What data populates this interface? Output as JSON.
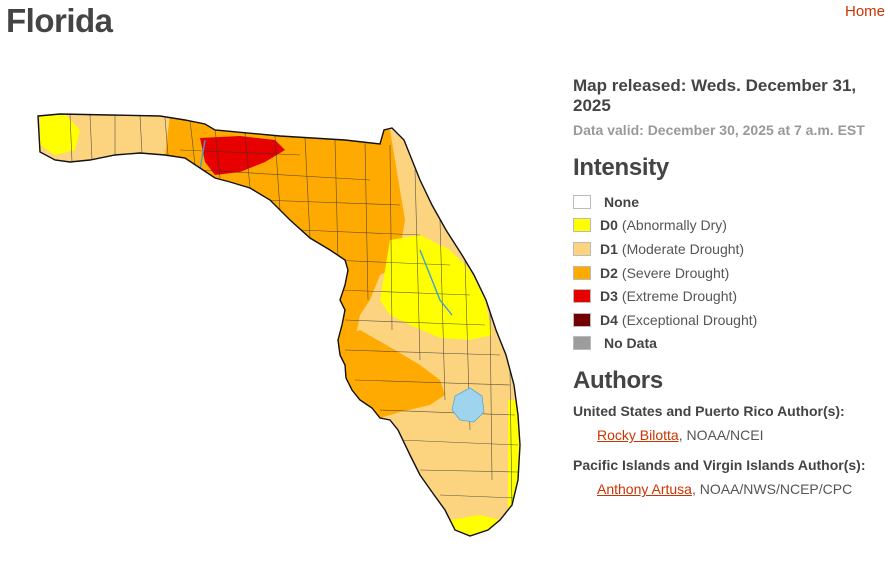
{
  "header": {
    "title": "Florida",
    "home_label": "Home"
  },
  "map": {
    "released": "Map released: Weds. December 31, 2025",
    "valid": "Data valid: December 30, 2025 at 7 a.m. EST"
  },
  "intensity": {
    "heading": "Intensity",
    "items": [
      {
        "code": "",
        "label": "None",
        "color": "#ffffff"
      },
      {
        "code": "D0",
        "label": "(Abnormally Dry)",
        "color": "#ffff00"
      },
      {
        "code": "D1",
        "label": "(Moderate Drought)",
        "color": "#fcd37f"
      },
      {
        "code": "D2",
        "label": "(Severe Drought)",
        "color": "#ffaa00"
      },
      {
        "code": "D3",
        "label": "(Extreme Drought)",
        "color": "#e60000"
      },
      {
        "code": "D4",
        "label": "(Exceptional Drought)",
        "color": "#730000"
      },
      {
        "code": "",
        "label": "No Data",
        "color": "#9c9c9c"
      }
    ]
  },
  "authors": {
    "heading": "Authors",
    "groups": [
      {
        "title": "United States and Puerto Rico Author(s):",
        "name": "Rocky Bilotta",
        "org": ", NOAA/NCEI"
      },
      {
        "title": "Pacific Islands and Virgin Islands Author(s):",
        "name": "Anthony Artusa",
        "org": ", NOAA/NWS/NCEP/CPC"
      }
    ]
  },
  "colors": {
    "d0": "#ffff00",
    "d1": "#fcd37f",
    "d2": "#ffaa00",
    "d3": "#e60000",
    "water": "#9fd4ee",
    "link": "#cc3300"
  }
}
